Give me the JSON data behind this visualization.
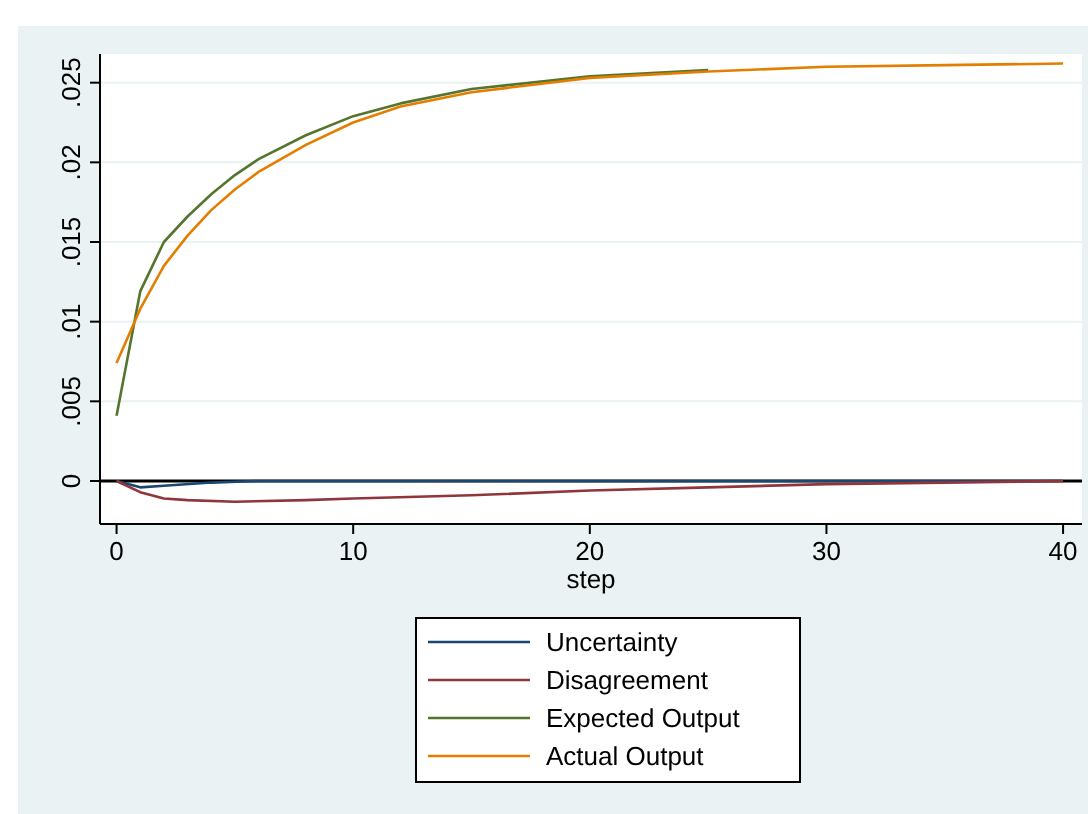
{
  "chart_data": {
    "type": "line",
    "xlabel": "step",
    "xlim": [
      -0.7,
      40.8
    ],
    "xticks": [
      0,
      10,
      20,
      30,
      40
    ],
    "ylim": [
      -0.0027,
      0.0268
    ],
    "yticks": [
      0,
      {
        "value": 0.005,
        "label": ".005"
      },
      {
        "value": 0.01,
        "label": ".01"
      },
      {
        "value": 0.015,
        "label": ".015"
      },
      {
        "value": 0.02,
        "label": ".02"
      },
      {
        "value": 0.025,
        "label": ".025"
      }
    ],
    "grid": "y",
    "legend": "bottom",
    "ref_lines": [
      {
        "axis": "y",
        "value": 0,
        "color": "#000000"
      }
    ],
    "series": [
      {
        "name": "Uncertainty",
        "color": "#1a476f",
        "x": [
          0,
          1,
          2,
          4,
          6,
          10,
          20,
          30,
          40
        ],
        "values": [
          0,
          -0.0004,
          -0.0003,
          -0.0001,
          0,
          0,
          0,
          0,
          0
        ]
      },
      {
        "name": "Disagreement",
        "color": "#90353b",
        "x": [
          0,
          1,
          2,
          3,
          5,
          8,
          10,
          15,
          20,
          25,
          30,
          35,
          40
        ],
        "values": [
          0,
          -0.0007,
          -0.0011,
          -0.0012,
          -0.0013,
          -0.0012,
          -0.0011,
          -0.0009,
          -0.0006,
          -0.0004,
          -0.0002,
          -0.0001,
          0
        ]
      },
      {
        "name": "Expected Output",
        "color": "#55752f",
        "x": [
          0,
          1,
          2,
          3,
          4,
          5,
          6,
          8,
          10,
          12,
          15,
          20,
          25
        ],
        "values": [
          0.0041,
          0.0119,
          0.015,
          0.0166,
          0.018,
          0.0192,
          0.0202,
          0.0217,
          0.0229,
          0.0237,
          0.0246,
          0.0254,
          0.0258
        ]
      },
      {
        "name": "Actual Output",
        "color": "#e37e00",
        "x": [
          0,
          1,
          2,
          3,
          4,
          5,
          6,
          8,
          10,
          12,
          15,
          20,
          25,
          30,
          35,
          40
        ],
        "values": [
          0.0074,
          0.0108,
          0.0135,
          0.0154,
          0.017,
          0.0183,
          0.0194,
          0.0211,
          0.0225,
          0.0235,
          0.0244,
          0.0253,
          0.0257,
          0.026,
          0.0261,
          0.0262
        ]
      }
    ]
  }
}
